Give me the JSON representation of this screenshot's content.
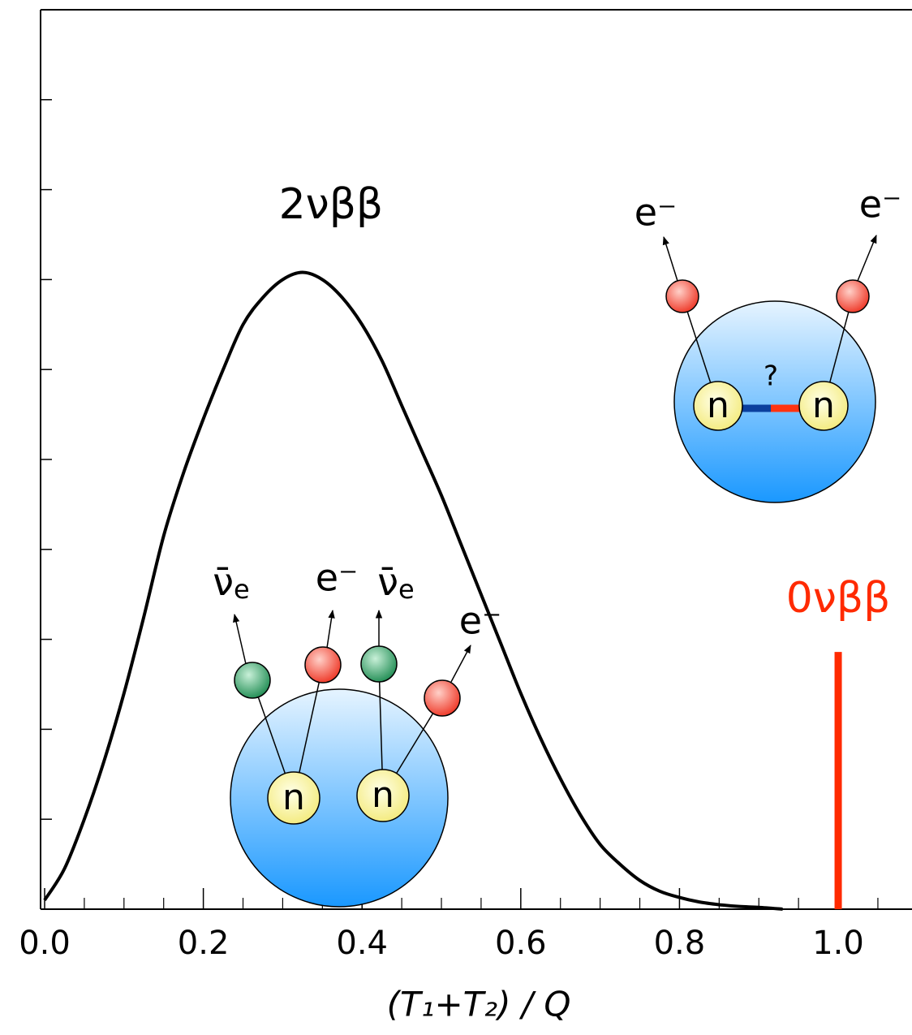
{
  "chart_data": {
    "type": "line",
    "x_label": "(T₁+T₂) / Q",
    "xlim": [
      0,
      1.093
    ],
    "ylim": [
      0,
      10
    ],
    "xticks": [
      {
        "value": 0,
        "label": "0.0"
      },
      0.2,
      0.4,
      0.6,
      0.8,
      {
        "value": 1,
        "label": "1.0"
      }
    ],
    "x_minor_ticks": [
      0.05,
      0.1,
      0.15,
      0.25,
      0.3,
      0.35,
      0.45,
      0.5,
      0.55,
      0.65,
      0.7,
      0.75,
      0.85,
      0.9,
      0.95,
      1.05
    ],
    "yticks": [
      1,
      2,
      3,
      4,
      5,
      6,
      7,
      8,
      9
    ],
    "series": [
      {
        "name": "2νββ",
        "color": "#000000",
        "x": [
          0,
          0.025,
          0.05,
          0.075,
          0.1,
          0.125,
          0.15,
          0.175,
          0.2,
          0.225,
          0.25,
          0.275,
          0.3,
          0.325,
          0.35,
          0.375,
          0.4,
          0.425,
          0.45,
          0.475,
          0.5,
          0.525,
          0.55,
          0.575,
          0.6,
          0.625,
          0.65,
          0.675,
          0.7,
          0.725,
          0.75,
          0.775,
          0.8,
          0.825,
          0.85,
          0.875,
          0.9,
          0.93
        ],
        "values": [
          0.1,
          0.45,
          1.0,
          1.65,
          2.4,
          3.25,
          4.15,
          4.85,
          5.45,
          6.0,
          6.5,
          6.8,
          7.0,
          7.08,
          7.0,
          6.8,
          6.5,
          6.1,
          5.6,
          5.1,
          4.6,
          4.05,
          3.5,
          2.95,
          2.4,
          1.9,
          1.45,
          1.05,
          0.72,
          0.5,
          0.32,
          0.2,
          0.13,
          0.08,
          0.05,
          0.03,
          0.02,
          0
        ]
      },
      {
        "name": "0νββ",
        "color": "#ff2a00",
        "x": [
          1
        ],
        "values": [
          2.86
        ]
      }
    ],
    "diagram_labels": {
      "electron": "e⁻",
      "antineutrino": "ν̄",
      "antineutrino_sub": "e",
      "neutron": "n",
      "question": "?"
    }
  }
}
